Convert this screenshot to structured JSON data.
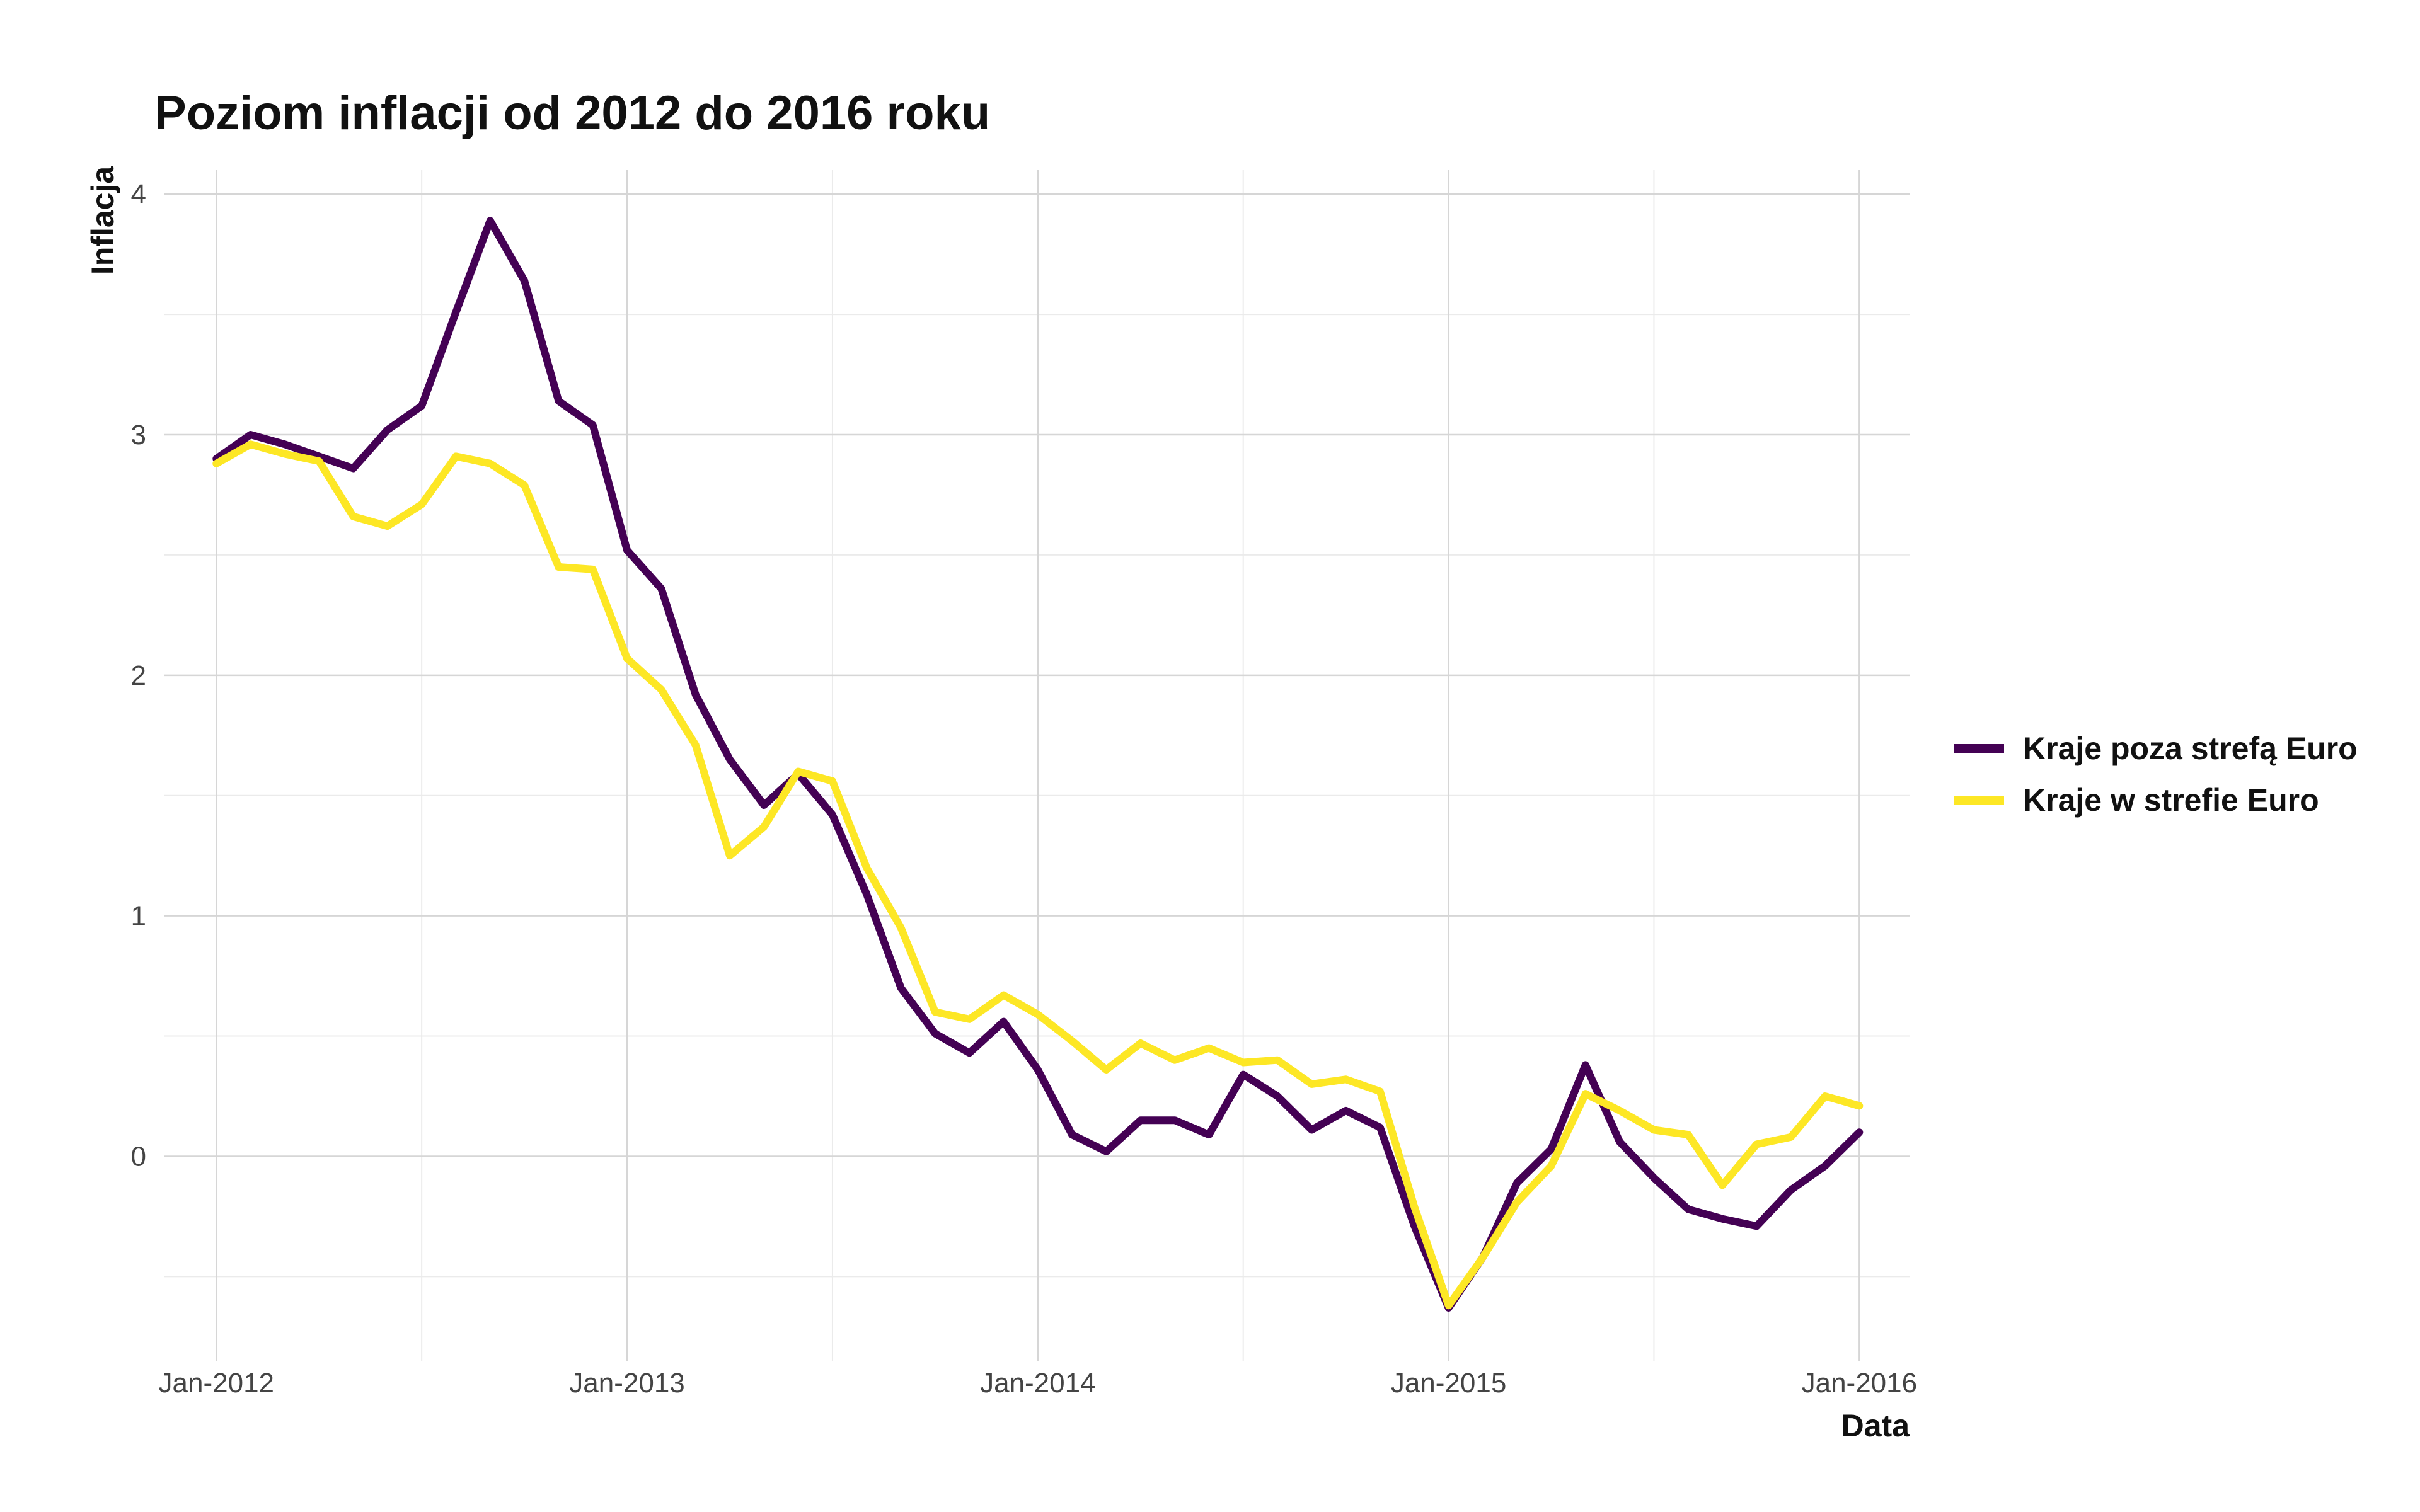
{
  "chart_data": {
    "type": "line",
    "title": "Poziom inflacji od 2012 do 2016 roku",
    "xlabel": "Data",
    "ylabel": "Inflacja",
    "x_ticks": [
      "Jan-2012",
      "Jan-2013",
      "Jan-2014",
      "Jan-2015",
      "Jan-2016"
    ],
    "y_ticks": [
      0,
      1,
      2,
      3,
      4
    ],
    "ylim": [
      -0.85,
      4.1
    ],
    "xlim": [
      "2011-11-15",
      "2016-02-15"
    ],
    "grid": true,
    "legend_position": "right",
    "x": [
      "2012-01",
      "2012-02",
      "2012-03",
      "2012-04",
      "2012-05",
      "2012-06",
      "2012-07",
      "2012-08",
      "2012-09",
      "2012-10",
      "2012-11",
      "2012-12",
      "2013-01",
      "2013-02",
      "2013-03",
      "2013-04",
      "2013-05",
      "2013-06",
      "2013-07",
      "2013-08",
      "2013-09",
      "2013-10",
      "2013-11",
      "2013-12",
      "2014-01",
      "2014-02",
      "2014-03",
      "2014-04",
      "2014-05",
      "2014-06",
      "2014-07",
      "2014-08",
      "2014-09",
      "2014-10",
      "2014-11",
      "2014-12",
      "2015-01",
      "2015-02",
      "2015-03",
      "2015-04",
      "2015-05",
      "2015-06",
      "2015-07",
      "2015-08",
      "2015-09",
      "2015-10",
      "2015-11",
      "2015-12",
      "2016-01"
    ],
    "series": [
      {
        "name": "Kraje poza strefą Euro",
        "color": "#440154",
        "values": [
          2.9,
          3.0,
          2.96,
          2.91,
          2.86,
          3.02,
          3.12,
          3.51,
          3.89,
          3.64,
          3.14,
          3.04,
          2.52,
          2.36,
          1.92,
          1.65,
          1.46,
          1.59,
          1.42,
          1.09,
          0.7,
          0.51,
          0.43,
          0.56,
          0.36,
          0.09,
          0.02,
          0.15,
          0.15,
          0.09,
          0.34,
          0.25,
          0.11,
          0.19,
          0.12,
          -0.29,
          -0.63,
          -0.42,
          -0.11,
          0.03,
          0.38,
          0.06,
          -0.09,
          -0.22,
          -0.26,
          -0.29,
          -0.14,
          -0.04,
          0.1
        ]
      },
      {
        "name": "Kraje w strefie Euro",
        "color": "#FDE725",
        "values": [
          2.88,
          2.96,
          2.92,
          2.89,
          2.66,
          2.62,
          2.71,
          2.91,
          2.88,
          2.79,
          2.45,
          2.44,
          2.07,
          1.94,
          1.71,
          1.25,
          1.37,
          1.6,
          1.56,
          1.2,
          0.95,
          0.6,
          0.57,
          0.67,
          0.59,
          0.48,
          0.36,
          0.47,
          0.4,
          0.45,
          0.39,
          0.4,
          0.3,
          0.32,
          0.27,
          -0.21,
          -0.62,
          -0.42,
          -0.19,
          -0.04,
          0.26,
          0.19,
          0.11,
          0.09,
          -0.12,
          0.05,
          0.08,
          0.25,
          0.21
        ]
      }
    ]
  }
}
